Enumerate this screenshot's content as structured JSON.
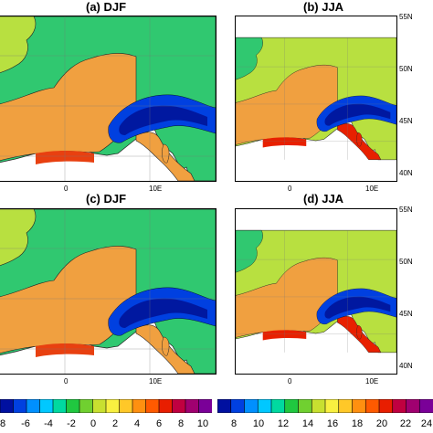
{
  "panels": [
    {
      "title": "(a) DJF",
      "season": "DJF"
    },
    {
      "title": "(b) JJA",
      "season": "JJA"
    },
    {
      "title": "(c) DJF",
      "season": "DJF"
    },
    {
      "title": "(d) JJA",
      "season": "JJA"
    }
  ],
  "lon_ticks": [
    "0",
    "10E"
  ],
  "lat_ticks": [
    "55N",
    "50N",
    "45N",
    "40N"
  ],
  "colorbars": [
    {
      "name": "djf",
      "labels": [
        "8",
        "-6",
        "-4",
        "-2",
        "0",
        "2",
        "4",
        "6",
        "8",
        "10"
      ],
      "colors": [
        "#0010a0",
        "#0040e0",
        "#0090ff",
        "#00c8ff",
        "#00d9a0",
        "#20c840",
        "#70d030",
        "#c8e030",
        "#f8f040",
        "#ffc828",
        "#ff9010",
        "#ff5a00",
        "#e81e00",
        "#c00040",
        "#a00070",
        "#7a0098"
      ]
    },
    {
      "name": "jja",
      "labels": [
        "8",
        "10",
        "12",
        "14",
        "16",
        "18",
        "20",
        "22",
        "24"
      ],
      "colors": [
        "#0010a0",
        "#0040e0",
        "#0090ff",
        "#00c8ff",
        "#00d9a0",
        "#20c840",
        "#70d030",
        "#c8e030",
        "#f8f040",
        "#ffc828",
        "#ff9010",
        "#ff5a00",
        "#e81e00",
        "#c00040",
        "#a00070",
        "#7a0098"
      ]
    }
  ],
  "palette": {
    "sea": "#ffffff",
    "lowland": "#f0a040",
    "midland": "#b8e040",
    "upland": "#30c870",
    "alps": "#0040e0",
    "alps_core": "#0018a0",
    "hot": "#e82000"
  }
}
